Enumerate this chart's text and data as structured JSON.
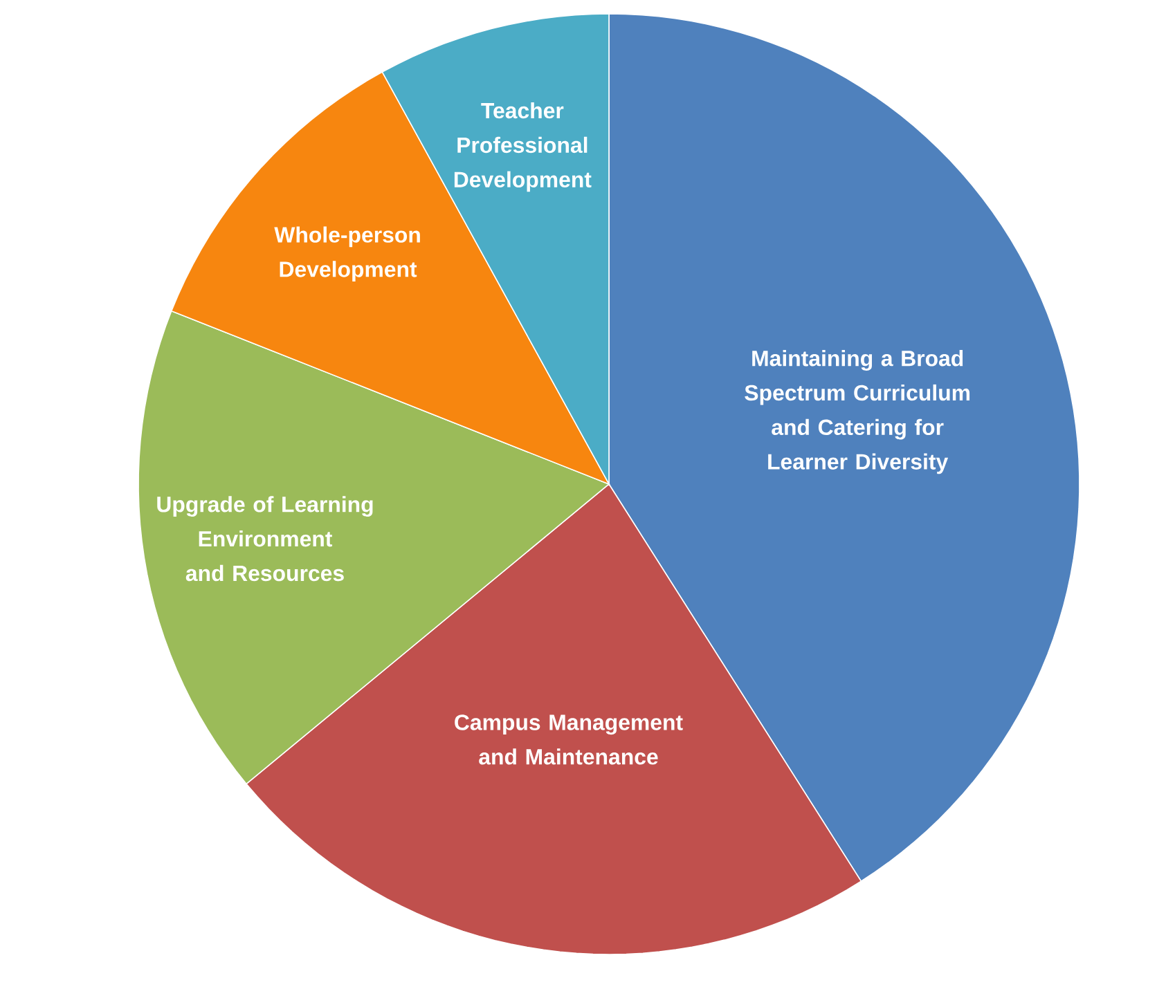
{
  "chart_data": {
    "type": "pie",
    "categories": [
      "Maintaining a Broad Spectrum Curriculum and Catering for Learner Diversity",
      "Campus Management and Maintenance",
      "Upgrade of Learning Environment and Resources",
      "Whole-person Development",
      "Teacher Professional Development"
    ],
    "values": [
      41,
      23,
      17,
      11,
      8
    ],
    "colors": [
      "#4f81bd",
      "#c0504d",
      "#9bbb59",
      "#f7860f",
      "#4bacc6"
    ]
  }
}
